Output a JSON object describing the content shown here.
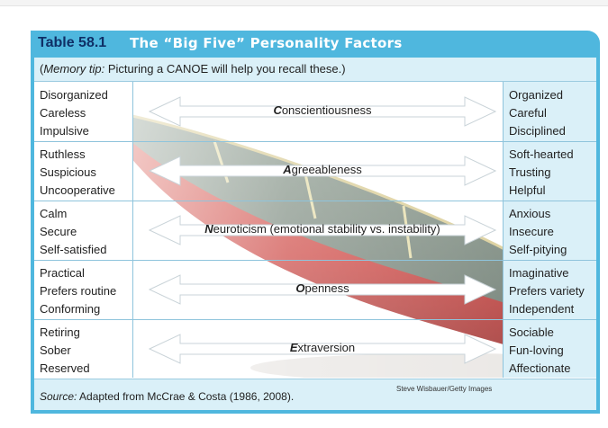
{
  "table": {
    "number": "Table 58.1",
    "title": "The “Big Five” Personality Factors",
    "memory_tip_label": "Memory tip:",
    "memory_tip_text": " Picturing a CANOE will help you recall these.)",
    "memory_tip_open": "(",
    "rows": [
      {
        "left": [
          "Disorganized",
          "Careless",
          "Impulsive"
        ],
        "trait_initial": "C",
        "trait_rest": "onscientiousness",
        "right": [
          "Organized",
          "Careful",
          "Disciplined"
        ]
      },
      {
        "left": [
          "Ruthless",
          "Suspicious",
          "Uncooperative"
        ],
        "trait_initial": "A",
        "trait_rest": "greeableness",
        "right": [
          "Soft-hearted",
          "Trusting",
          "Helpful"
        ]
      },
      {
        "left": [
          "Calm",
          "Secure",
          "Self-satisfied"
        ],
        "trait_initial": "N",
        "trait_rest": "euroticism (emotional stability vs. instability)",
        "right": [
          "Anxious",
          "Insecure",
          "Self-pitying"
        ]
      },
      {
        "left": [
          "Practical",
          "Prefers routine",
          "Conforming"
        ],
        "trait_initial": "O",
        "trait_rest": "penness",
        "right": [
          "Imaginative",
          "Prefers variety",
          "Independent"
        ]
      },
      {
        "left": [
          "Retiring",
          "Sober",
          "Reserved"
        ],
        "trait_initial": "E",
        "trait_rest": "xtraversion",
        "right": [
          "Sociable",
          "Fun-loving",
          "Affectionate"
        ]
      }
    ],
    "source_label": "Source:",
    "source_text": " Adapted from McCrae & Costa (1986, 2008).",
    "photo_credit": "Steve Wisbauer/Getty Images"
  },
  "colors": {
    "frame": "#4fb7de",
    "tint": "#daf0f8",
    "number": "#0f2f66",
    "canoe_red": "#c93a36"
  }
}
